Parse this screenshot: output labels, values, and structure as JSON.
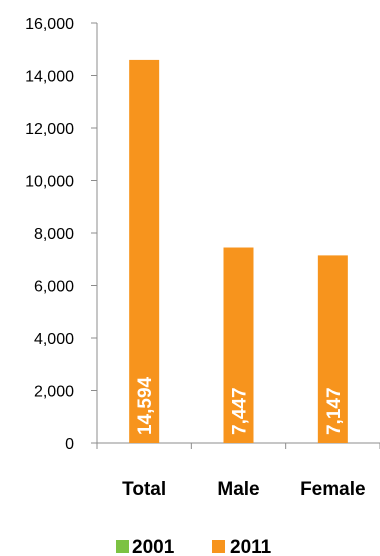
{
  "chart_data": {
    "type": "bar",
    "categories": [
      "Total",
      "Male",
      "Female"
    ],
    "series": [
      {
        "name": "2001",
        "color": "#7cc242",
        "values": [
          null,
          null,
          null
        ]
      },
      {
        "name": "2011",
        "color": "#f7941d",
        "values": [
          14594,
          7447,
          7147
        ],
        "labels": [
          "14,594",
          "7,447",
          "7,147"
        ]
      }
    ],
    "ylim": [
      0,
      16000
    ],
    "yticks": [
      0,
      2000,
      4000,
      6000,
      8000,
      10000,
      12000,
      14000,
      16000
    ],
    "ytick_labels": [
      "0",
      "2,000",
      "4,000",
      "6,000",
      "8,000",
      "10,000",
      "12,000",
      "14,000",
      "16,000"
    ],
    "grid": false,
    "legend_position": "bottom",
    "data_label_placement": "inside-base-rotated"
  }
}
